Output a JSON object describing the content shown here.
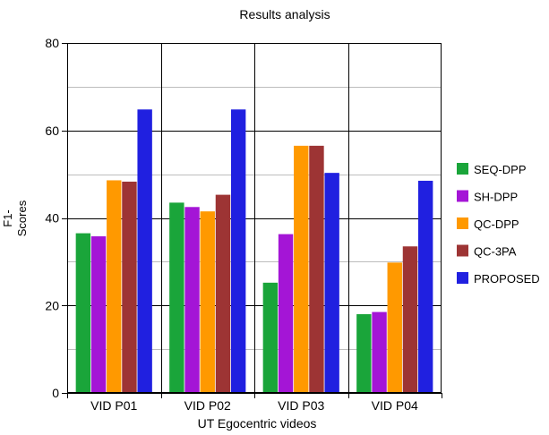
{
  "chart_data": {
    "type": "bar",
    "title": "Results  analysis",
    "xlabel": "UT Egocentric videos",
    "ylabel_lines": [
      "F1-",
      "Scores"
    ],
    "categories": [
      "VID P01",
      "VID P02",
      "VID P03",
      "VID P04"
    ],
    "ylim": [
      0,
      80
    ],
    "yticks": [
      "0",
      "20",
      "40",
      "60",
      "80"
    ],
    "grid": true,
    "legend_position": "right",
    "series": [
      {
        "name": "SEQ-DPP",
        "color": "#1aa53a",
        "values": [
          36.5,
          43.5,
          25.2,
          18.0
        ]
      },
      {
        "name": "SH-DPP",
        "color": "#a415d6",
        "values": [
          35.8,
          42.5,
          36.3,
          18.5
        ]
      },
      {
        "name": "QC-DPP",
        "color": "#ff9900",
        "values": [
          48.6,
          41.5,
          56.5,
          29.8
        ]
      },
      {
        "name": "QC-3PA",
        "color": "#9d3434",
        "values": [
          48.3,
          45.3,
          56.5,
          33.5
        ]
      },
      {
        "name": "PROPOSED",
        "color": "#2020e0",
        "values": [
          64.8,
          64.8,
          50.3,
          48.5
        ]
      }
    ]
  }
}
